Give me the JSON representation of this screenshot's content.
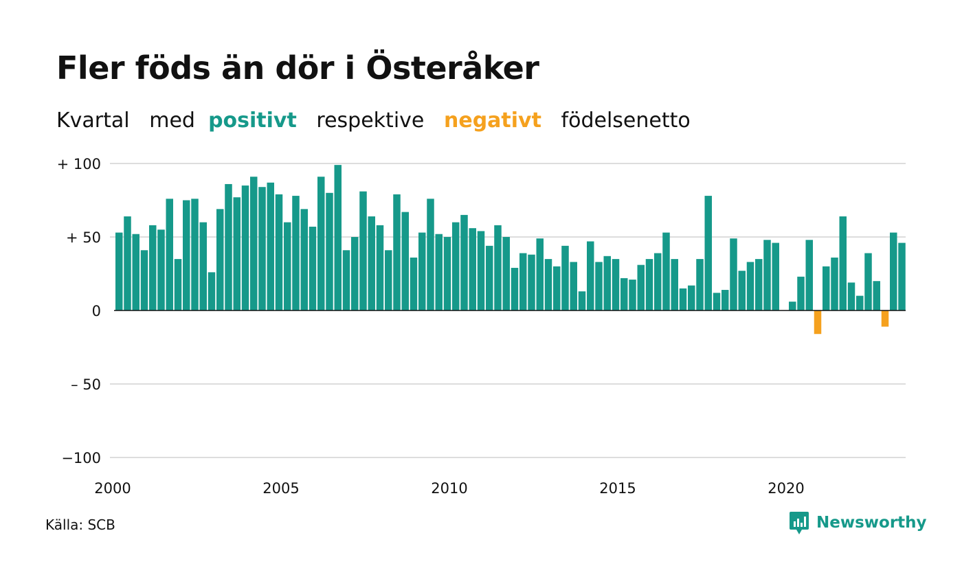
{
  "header": {
    "title": "Fler föds än dör i Österåker",
    "subtitle_parts": [
      "Kvartal",
      "med",
      "positivt",
      "respektive",
      "negativt",
      "födelsenetto"
    ]
  },
  "colors": {
    "positive": "#16998a",
    "negative": "#f5a11e",
    "gridline": "#dddddd",
    "baseline": "#111111",
    "text": "#111111"
  },
  "chart_data": {
    "type": "bar",
    "x_start_year": 2000,
    "x_end_year": 2023,
    "quarters_per_year": 4,
    "x_tick_labels": [
      "2000",
      "2005",
      "2010",
      "2015",
      "2020"
    ],
    "y_tick_labels": [
      "+ 100",
      "+  50",
      "0",
      "– 50",
      "−100"
    ],
    "y_ticks": [
      100,
      50,
      0,
      -50,
      -100
    ],
    "ylim": [
      -100,
      100
    ],
    "grid": true,
    "values": [
      53,
      64,
      52,
      41,
      58,
      55,
      76,
      35,
      75,
      76,
      60,
      26,
      69,
      86,
      77,
      85,
      91,
      84,
      87,
      79,
      60,
      78,
      69,
      57,
      91,
      80,
      99,
      41,
      50,
      81,
      64,
      58,
      41,
      79,
      67,
      36,
      53,
      76,
      52,
      50,
      60,
      65,
      56,
      54,
      44,
      58,
      50,
      29,
      39,
      38,
      49,
      35,
      30,
      44,
      33,
      13,
      47,
      33,
      37,
      35,
      22,
      21,
      31,
      35,
      39,
      53,
      35,
      15,
      17,
      35,
      78,
      12,
      14,
      49,
      27,
      33,
      35,
      48,
      46,
      0,
      6,
      23,
      48,
      -16,
      30,
      36,
      64,
      19,
      10,
      39,
      20,
      -11,
      53,
      46
    ]
  },
  "footer": {
    "source": "Källa: SCB",
    "brand": "Newsworthy"
  }
}
